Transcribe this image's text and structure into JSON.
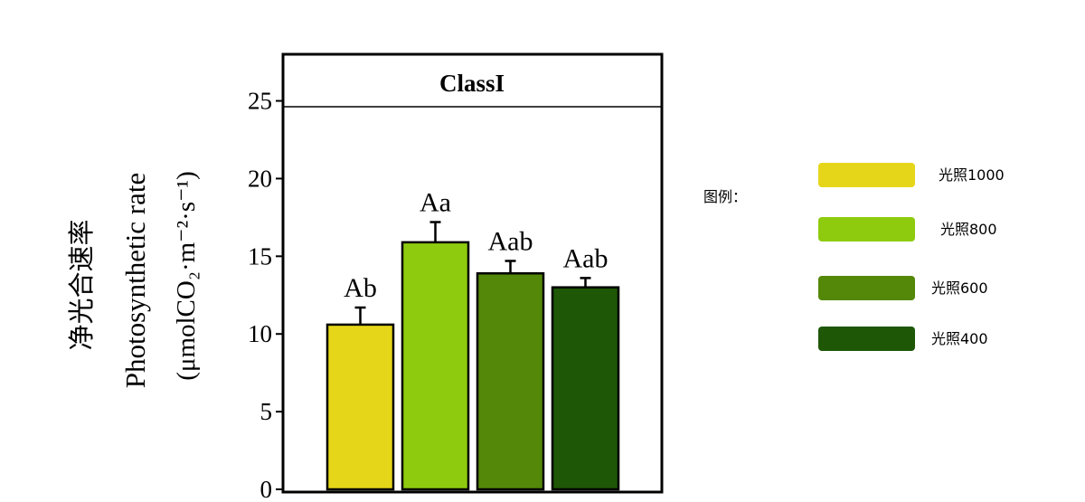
{
  "chart_data": {
    "type": "bar",
    "panel_title": "ClassI",
    "ylabel_lines": [
      "净光合速率",
      "Photosynthetic rate",
      "(μmolCO₂·m⁻²·s⁻¹)"
    ],
    "categories": [
      "光照1000",
      "光照800",
      "光照600",
      "光照400"
    ],
    "values": [
      10.6,
      15.9,
      13.9,
      13.0
    ],
    "errors": [
      1.1,
      1.3,
      0.8,
      0.6
    ],
    "annotations": [
      "Ab",
      "Aa",
      "Aab",
      "Aab"
    ],
    "colors": [
      "#e6d619",
      "#8ecb0f",
      "#548808",
      "#1e5706"
    ],
    "ylim": [
      0,
      28
    ],
    "yticks": [
      "0",
      "5",
      "10",
      "15",
      "20",
      "25"
    ],
    "grid": false,
    "legend": {
      "title": "图例：",
      "placement": "right",
      "items": [
        "光照1000",
        "光照800",
        "光照600",
        "光照400"
      ]
    }
  }
}
